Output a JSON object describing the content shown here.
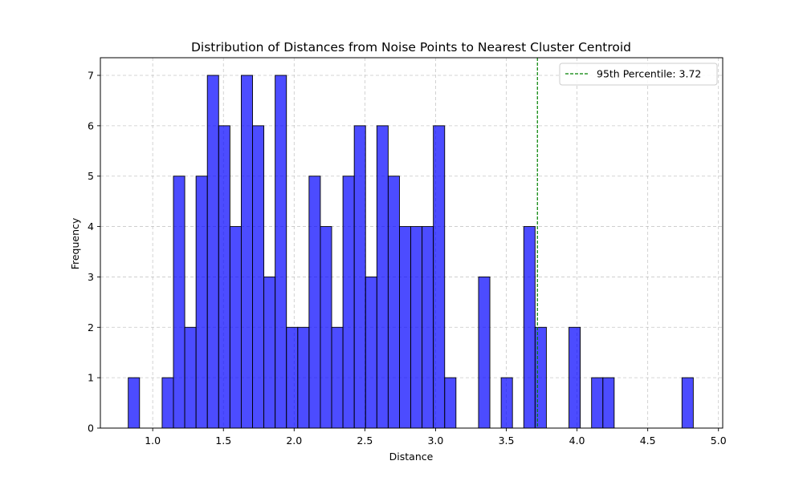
{
  "chart_data": {
    "type": "bar",
    "title": "Distribution of Distances from Noise Points to Nearest Cluster Centroid",
    "xlabel": "Distance",
    "ylabel": "Frequency",
    "xlim": [
      0.63,
      5.03
    ],
    "ylim": [
      0,
      7.35
    ],
    "xticks": [
      1.0,
      1.5,
      2.0,
      2.5,
      3.0,
      3.5,
      4.0,
      4.5,
      5.0
    ],
    "xtick_labels": [
      "1.0",
      "1.5",
      "2.0",
      "2.5",
      "3.0",
      "3.5",
      "4.0",
      "4.5",
      "5.0"
    ],
    "yticks": [
      0,
      1,
      2,
      3,
      4,
      5,
      6,
      7
    ],
    "ytick_labels": [
      "0",
      "1",
      "2",
      "3",
      "4",
      "5",
      "6",
      "7"
    ],
    "grid": true,
    "bin_start": 0.827,
    "bin_width": 0.0799,
    "values": [
      1,
      0,
      0,
      1,
      5,
      2,
      5,
      7,
      6,
      4,
      7,
      6,
      3,
      7,
      2,
      2,
      5,
      4,
      2,
      5,
      6,
      3,
      6,
      5,
      4,
      4,
      4,
      6,
      1,
      0,
      0,
      3,
      0,
      1,
      0,
      4,
      2,
      0,
      0,
      2,
      0,
      1,
      1,
      0,
      0,
      0,
      0,
      0,
      0,
      1
    ],
    "bar_color": "#0000ff",
    "bar_edge_color": "#000000",
    "percentile_line": {
      "value": 3.72,
      "label": "95th Percentile: 3.72",
      "color": "#008000",
      "style": "dashed"
    },
    "legend_placement": "top-right"
  }
}
